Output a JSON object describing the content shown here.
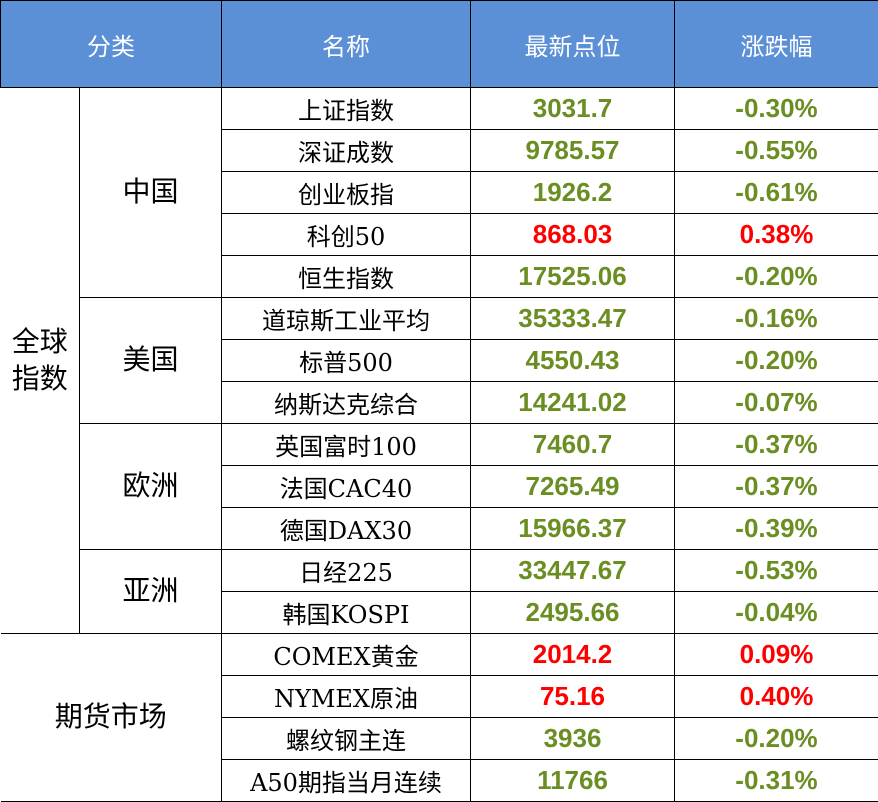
{
  "header": {
    "category": "分类",
    "name": "名称",
    "latest": "最新点位",
    "change": "涨跌幅"
  },
  "groups": {
    "global": "全球\n指数",
    "china": "中国",
    "usa": "美国",
    "europe": "欧洲",
    "asia": "亚洲",
    "futures": "期货市场"
  },
  "rows": [
    {
      "name": "上证指数",
      "value": "3031.7",
      "change": "-0.30%",
      "direction": "down"
    },
    {
      "name": "深证成数",
      "value": "9785.57",
      "change": "-0.55%",
      "direction": "down"
    },
    {
      "name": "创业板指",
      "value": "1926.2",
      "change": "-0.61%",
      "direction": "down"
    },
    {
      "name": "科创50",
      "value": "868.03",
      "change": "0.38%",
      "direction": "up"
    },
    {
      "name": "恒生指数",
      "value": "17525.06",
      "change": "-0.20%",
      "direction": "down"
    },
    {
      "name": "道琼斯工业平均",
      "value": "35333.47",
      "change": "-0.16%",
      "direction": "down"
    },
    {
      "name": "标普500",
      "value": "4550.43",
      "change": "-0.20%",
      "direction": "down"
    },
    {
      "name": "纳斯达克综合",
      "value": "14241.02",
      "change": "-0.07%",
      "direction": "down"
    },
    {
      "name": "英国富时100",
      "value": "7460.7",
      "change": "-0.37%",
      "direction": "down"
    },
    {
      "name": "法国CAC40",
      "value": "7265.49",
      "change": "-0.37%",
      "direction": "down"
    },
    {
      "name": "德国DAX30",
      "value": "15966.37",
      "change": "-0.39%",
      "direction": "down"
    },
    {
      "name": "日经225",
      "value": "33447.67",
      "change": "-0.53%",
      "direction": "down"
    },
    {
      "name": "韩国KOSPI",
      "value": "2495.66",
      "change": "-0.04%",
      "direction": "down"
    },
    {
      "name": "COMEX黄金",
      "value": "2014.2",
      "change": "0.09%",
      "direction": "up"
    },
    {
      "name": "NYMEX原油",
      "value": "75.16",
      "change": "0.40%",
      "direction": "up"
    },
    {
      "name": "螺纹钢主连",
      "value": "3936",
      "change": "-0.20%",
      "direction": "down"
    },
    {
      "name": "A50期指当月连续",
      "value": "11766",
      "change": "-0.31%",
      "direction": "down"
    }
  ],
  "colors": {
    "header_bg": "#5b8fd6",
    "up": "#ff0000",
    "down": "#6b8e23"
  }
}
